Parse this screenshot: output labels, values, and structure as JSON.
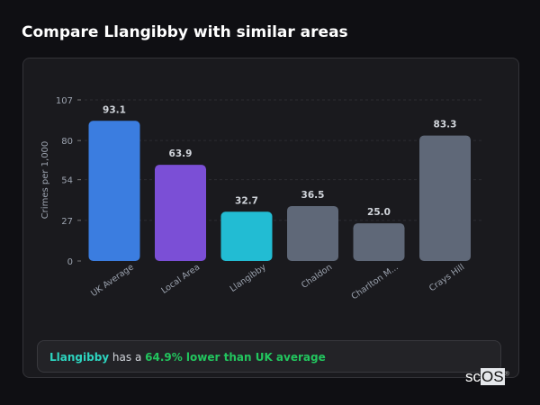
{
  "title": "Compare Llangibby with similar areas",
  "chart_data": {
    "type": "bar",
    "categories": [
      "UK Average",
      "Local Area",
      "Llangibby",
      "Chaldon",
      "Charlton M...",
      "Crays Hill"
    ],
    "values": [
      93.1,
      63.9,
      32.7,
      36.5,
      25.0,
      83.3
    ],
    "value_labels": [
      "93.1",
      "63.9",
      "32.7",
      "36.5",
      "25.0",
      "83.3"
    ],
    "colors": [
      "#3b7de0",
      "#7b4fd6",
      "#22bcd3",
      "#5f6878",
      "#5f6878",
      "#5f6878"
    ],
    "ylabel": "Crimes per 1,000",
    "yticks": [
      0,
      27,
      54,
      80,
      107
    ],
    "ylim": [
      0,
      107
    ],
    "grid": true
  },
  "summary": {
    "area": "Llangibby",
    "middle": " has a ",
    "comparison": "64.9% lower than UK average"
  },
  "logo": {
    "a": "sc",
    "b": "OS",
    "mark": "®"
  }
}
